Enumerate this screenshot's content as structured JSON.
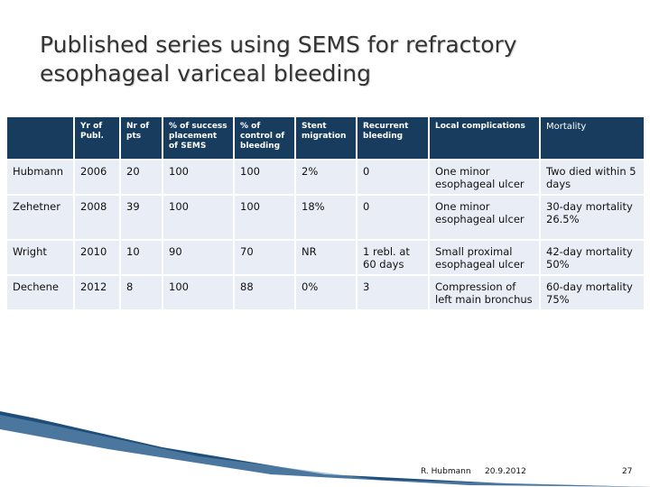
{
  "title": "Published series using SEMS for refractory esophageal variceal bleeding",
  "table": {
    "headers": [
      "",
      "Yr of Publ.",
      "Nr of pts",
      "% of success placement of SEMS",
      "% of control of bleeding",
      "Stent migration",
      "Recurrent bleeding",
      "Local complications",
      "Mortality"
    ],
    "rows": [
      [
        "Hubmann",
        "2006",
        "20",
        "100",
        "100",
        "2%",
        "0",
        "One minor esophageal ulcer",
        "Two died within 5 days"
      ],
      [
        "Zehetner",
        "2008",
        "39",
        "100",
        "100",
        "18%",
        "0",
        "One minor esophageal ulcer",
        "30-day mortality 26.5%"
      ],
      [
        "Wright",
        "2010",
        "10",
        "90",
        "70",
        "NR",
        "1 rebl. at 60 days",
        "Small proximal esophageal ulcer",
        "42-day mortality 50%"
      ],
      [
        "Dechene",
        "2012",
        "8",
        "100",
        "88",
        "0%",
        "3",
        "Compression of left main bronchus",
        "60-day mortality 75%"
      ]
    ]
  },
  "footer": {
    "author": "R. Hubmann",
    "date": "20.9.2012",
    "page": "27"
  },
  "colors": {
    "header_bg": "#173c5e",
    "cell_bg": "#e9edf5",
    "footer_band": "#1f4e79"
  }
}
